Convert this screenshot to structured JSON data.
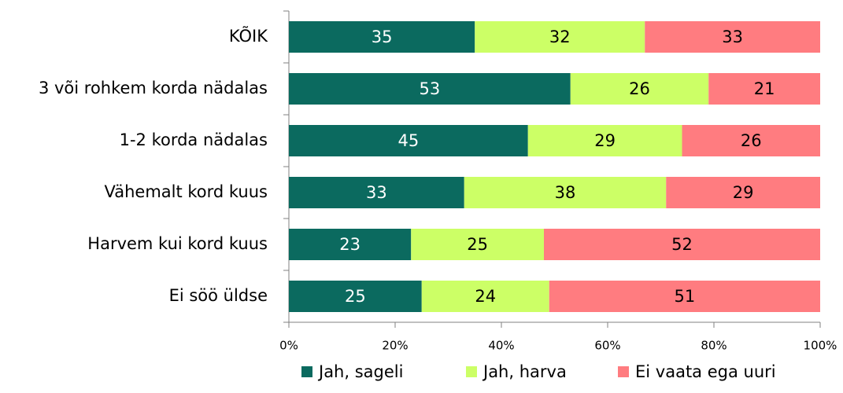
{
  "chart_data": {
    "type": "bar",
    "orientation": "horizontal",
    "stacked": true,
    "categories": [
      "KÕIK",
      "3 või rohkem korda nädalas",
      "1-2 korda nädalas",
      "Vähemalt kord kuus",
      "Harvem kui kord kuus",
      "Ei söö üldse"
    ],
    "series": [
      {
        "name": "Jah, sageli",
        "color": "#0b6a5f",
        "values": [
          35,
          53,
          45,
          33,
          23,
          25
        ]
      },
      {
        "name": "Jah, harva",
        "color": "#ccff66",
        "values": [
          32,
          26,
          29,
          38,
          25,
          24
        ]
      },
      {
        "name": "Ei vaata ega uuri",
        "color": "#ff7c80",
        "values": [
          33,
          21,
          26,
          29,
          52,
          51
        ]
      }
    ],
    "xlim": [
      0,
      100
    ],
    "xticks": [
      {
        "value": 0,
        "label": "0%"
      },
      {
        "value": 20,
        "label": "20%"
      },
      {
        "value": 40,
        "label": "40%"
      },
      {
        "value": 60,
        "label": "60%"
      },
      {
        "value": 80,
        "label": "80%"
      },
      {
        "value": 100,
        "label": "100%"
      }
    ],
    "grid": false,
    "legend": "bottom"
  }
}
